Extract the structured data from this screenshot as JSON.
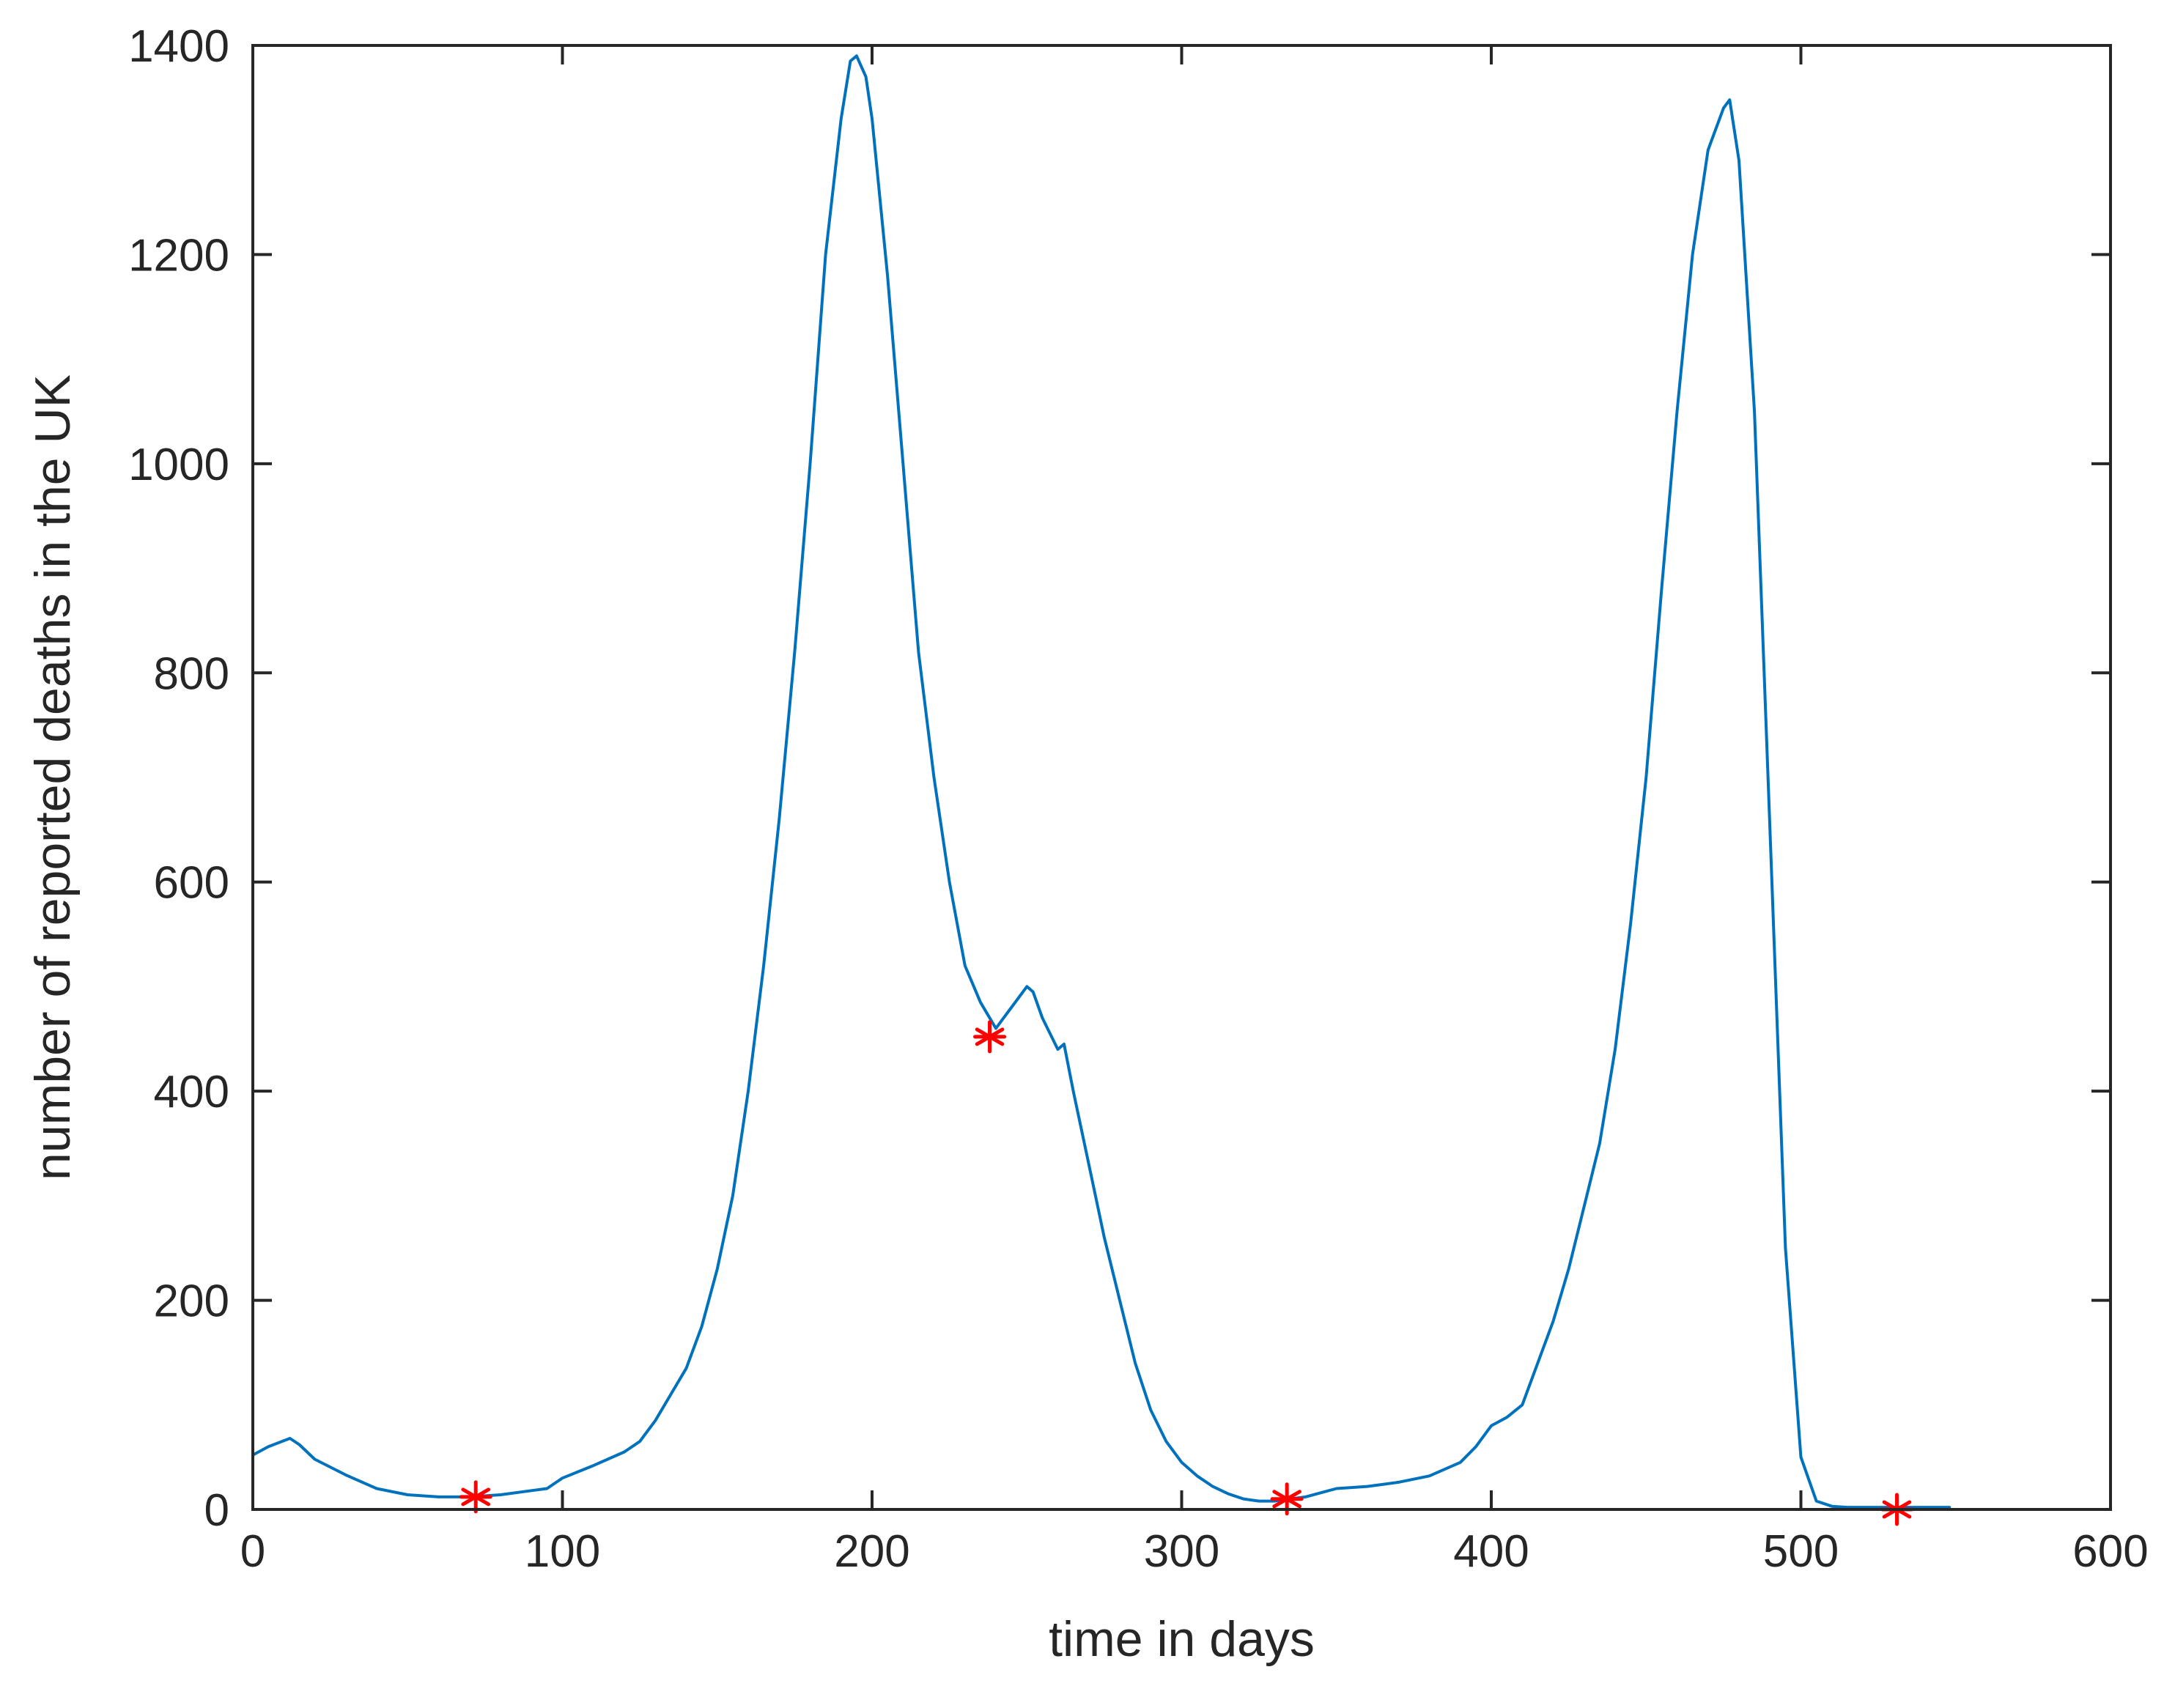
{
  "chart_data": {
    "type": "line",
    "title": "",
    "xlabel": "time in days",
    "ylabel": "number of reported deaths in the UK",
    "xlim": [
      0,
      600
    ],
    "ylim": [
      0,
      1400
    ],
    "xticks": [
      0,
      100,
      200,
      300,
      400,
      500,
      600
    ],
    "yticks": [
      0,
      200,
      400,
      600,
      800,
      1000,
      1200,
      1400
    ],
    "xtick_labels": [
      "0",
      "100",
      "200",
      "300",
      "400",
      "500",
      "600"
    ],
    "ytick_labels": [
      "0",
      "200",
      "400",
      "600",
      "800",
      "1000",
      "1200",
      "1400"
    ],
    "grid": false,
    "line_color": "#0072BD",
    "marker_color": "#FF0000",
    "series": [
      {
        "x": [
          0,
          5,
          12,
          15,
          20,
          30,
          40,
          50,
          60,
          70,
          80,
          90,
          95,
          100,
          110,
          120,
          125,
          130,
          135,
          140,
          145,
          150,
          155,
          160,
          165,
          170,
          175,
          180,
          185,
          190,
          193,
          195,
          198,
          200,
          205,
          210,
          215,
          220,
          225,
          230,
          235,
          238,
          240,
          242,
          245,
          250,
          252,
          255,
          260,
          262,
          265,
          270,
          275,
          280,
          285,
          290,
          295,
          300,
          305,
          310,
          315,
          320,
          325,
          330,
          335,
          340,
          345,
          350,
          360,
          370,
          380,
          390,
          395,
          400,
          405,
          410,
          415,
          420,
          425,
          430,
          435,
          440,
          445,
          450,
          455,
          460,
          465,
          470,
          475,
          477,
          480,
          485,
          490,
          495,
          500,
          505,
          510,
          515,
          520,
          530,
          540,
          548
        ],
        "y": [
          52,
          60,
          68,
          62,
          48,
          33,
          20,
          14,
          12,
          12,
          14,
          18,
          20,
          30,
          42,
          55,
          65,
          85,
          110,
          135,
          175,
          230,
          300,
          400,
          520,
          660,
          820,
          1000,
          1200,
          1330,
          1385,
          1390,
          1370,
          1330,
          1180,
          1000,
          820,
          700,
          600,
          520,
          485,
          470,
          460,
          468,
          480,
          500,
          495,
          470,
          440,
          445,
          400,
          330,
          260,
          200,
          140,
          95,
          65,
          45,
          32,
          22,
          15,
          10,
          8,
          8,
          10,
          12,
          16,
          20,
          22,
          26,
          32,
          45,
          60,
          80,
          88,
          100,
          140,
          180,
          230,
          290,
          350,
          440,
          560,
          700,
          880,
          1050,
          1200,
          1300,
          1340,
          1348,
          1290,
          1050,
          650,
          250,
          50,
          8,
          3,
          2,
          2,
          2,
          2,
          2
        ]
      }
    ],
    "markers": {
      "symbol": "*",
      "x": [
        72,
        238,
        334,
        531
      ],
      "y": [
        12,
        452,
        10,
        0
      ]
    }
  }
}
